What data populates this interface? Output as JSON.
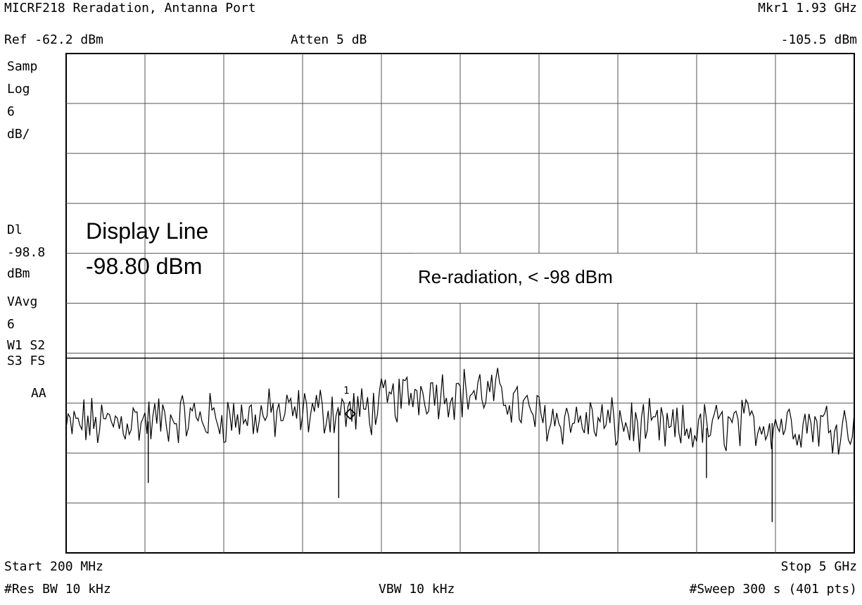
{
  "header": {
    "title": "MICRF218 Reradation, Antanna Port",
    "ref_level": "Ref -62.2 dBm",
    "attenuation": "Atten 5 dB",
    "marker_freq": "Mkr1  1.93 GHz",
    "marker_level": "-105.5 dBm"
  },
  "side_panel": {
    "detector": "Samp",
    "scale_type": "Log",
    "scale_value": "6",
    "scale_unit": "dB/",
    "dl_label": "Dl",
    "dl_value": "-98.8",
    "dl_unit": "dBm",
    "avg_label": "VAvg",
    "avg_count": "6",
    "trace_states_1": "W1  S2",
    "trace_states_2": "S3  FS",
    "trace_states_3": "AA"
  },
  "annotations": {
    "display_line_title": "Display Line",
    "display_line_value": "-98.80 dBm",
    "reradiation_note": "Re-radiation, < -98 dBm",
    "marker_label": "1"
  },
  "footer": {
    "start": "Start 200 MHz",
    "stop": "Stop 5 GHz",
    "res_bw": "#Res BW 10 kHz",
    "vbw": "VBW 10 kHz",
    "sweep": "#Sweep 300 s (401 pts)"
  },
  "chart_data": {
    "type": "line",
    "title": "MICRF218 Reradation, Antanna Port",
    "x_unit": "MHz",
    "y_unit": "dBm",
    "xlim": [
      200,
      5000
    ],
    "ylim": [
      -122.2,
      -62.2
    ],
    "y_divisions": 10,
    "x_divisions": 10,
    "grid": true,
    "display_line_dbm": -98.8,
    "marker": {
      "x": 1930,
      "y": -105.5,
      "label": "1"
    },
    "series": [
      {
        "x": [
          200,
          300,
          400,
          500,
          600,
          700,
          800,
          900,
          1000,
          1100,
          1200,
          1300,
          1400,
          1500,
          1600,
          1700,
          1800,
          1900,
          2000,
          2100,
          2200,
          2300,
          2400,
          2500,
          2600,
          2700,
          2800,
          2900,
          3000,
          3100,
          3200,
          3300,
          3400,
          3500,
          3600,
          3700,
          3800,
          3900,
          4000,
          4100,
          4200,
          4300,
          4400,
          4500,
          4600,
          4700,
          4800,
          4900,
          5000
        ],
        "values": [
          -107.5,
          -106.5,
          -106.8,
          -106.5,
          -106.3,
          -106.4,
          -106.1,
          -106.0,
          -106.0,
          -105.9,
          -106.0,
          -105.9,
          -105.8,
          -105.6,
          -105.4,
          -105.2,
          -105.0,
          -105.2,
          -105.3,
          -104.6,
          -103.8,
          -103.1,
          -102.6,
          -102.8,
          -103.0,
          -102.9,
          -103.2,
          -103.4,
          -105.3,
          -105.9,
          -106.0,
          -106.3,
          -106.5,
          -106.7,
          -106.8,
          -107.1,
          -107.4,
          -107.6,
          -107.5,
          -107.2,
          -106.9,
          -106.8,
          -106.7,
          -106.6,
          -106.5,
          -106.6,
          -106.7,
          -106.8,
          -107.0
        ]
      }
    ]
  }
}
